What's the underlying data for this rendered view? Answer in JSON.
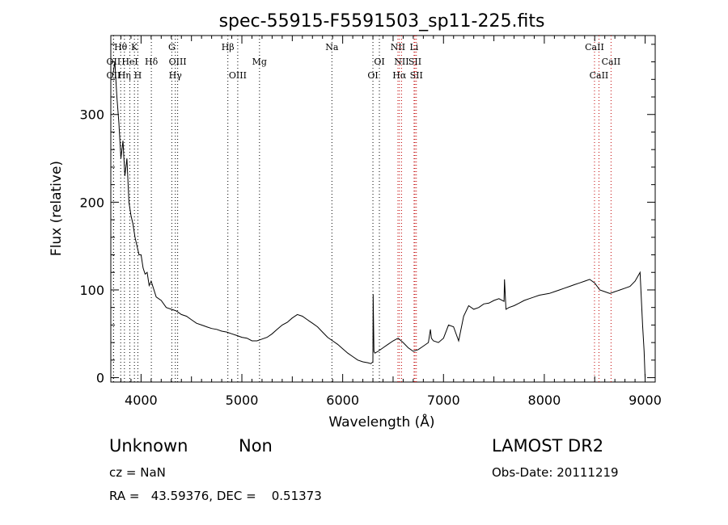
{
  "chart_data": {
    "type": "line",
    "title": "spec-55915-F5591503_sp11-225.fits",
    "xlabel": "Wavelength (Å)",
    "ylabel": "Flux (relative)",
    "xlim": [
      3700,
      9100
    ],
    "ylim": [
      -5,
      390
    ],
    "x_ticks": [
      4000,
      5000,
      6000,
      7000,
      8000,
      9000
    ],
    "y_ticks": [
      0,
      100,
      200,
      300
    ],
    "grid": false,
    "series": [
      {
        "x": [
          3720,
          3740,
          3760,
          3780,
          3800,
          3820,
          3840,
          3860,
          3880,
          3900,
          3920,
          3940,
          3960,
          3980,
          4000,
          4020,
          4040,
          4060,
          4080,
          4100,
          4150,
          4200,
          4250,
          4300,
          4350,
          4400,
          4450,
          4500,
          4550,
          4600,
          4650,
          4700,
          4750,
          4800,
          4850,
          4900,
          4950,
          5000,
          5050,
          5100,
          5150,
          5200,
          5250,
          5300,
          5350,
          5400,
          5450,
          5500,
          5550,
          5600,
          5650,
          5700,
          5750,
          5800,
          5850,
          5900,
          5950,
          6000,
          6050,
          6100,
          6150,
          6200,
          6250,
          6280,
          6300,
          6302,
          6310,
          6320,
          6350,
          6400,
          6450,
          6500,
          6550,
          6600,
          6650,
          6700,
          6750,
          6800,
          6850,
          6870,
          6880,
          6900,
          6950,
          7000,
          7050,
          7100,
          7150,
          7200,
          7250,
          7300,
          7350,
          7400,
          7450,
          7500,
          7550,
          7600,
          7605,
          7620,
          7650,
          7700,
          7750,
          7800,
          7850,
          7900,
          7950,
          8000,
          8050,
          8100,
          8150,
          8200,
          8250,
          8300,
          8350,
          8400,
          8450,
          8500,
          8550,
          8600,
          8650,
          8700,
          8750,
          8800,
          8850,
          8900,
          8950,
          8975,
          8990,
          9000
        ],
        "y": [
          345,
          360,
          320,
          290,
          250,
          270,
          230,
          250,
          200,
          185,
          175,
          160,
          150,
          140,
          140,
          125,
          118,
          120,
          105,
          110,
          92,
          88,
          80,
          78,
          76,
          72,
          70,
          66,
          62,
          60,
          58,
          56,
          55,
          53,
          52,
          50,
          48,
          46,
          45,
          42,
          42,
          44,
          46,
          50,
          55,
          60,
          63,
          68,
          72,
          70,
          66,
          62,
          58,
          52,
          46,
          42,
          38,
          33,
          28,
          24,
          20,
          18,
          17,
          16,
          18,
          95,
          30,
          28,
          30,
          34,
          38,
          42,
          45,
          40,
          34,
          30,
          32,
          36,
          40,
          55,
          45,
          42,
          40,
          45,
          60,
          58,
          42,
          70,
          82,
          78,
          80,
          84,
          85,
          88,
          90,
          87,
          112,
          78,
          80,
          82,
          85,
          88,
          90,
          92,
          94,
          95,
          96,
          98,
          100,
          102,
          104,
          106,
          108,
          110,
          112,
          108,
          100,
          98,
          96,
          98,
          100,
          102,
          104,
          110,
          120,
          60,
          30,
          0
        ]
      }
    ],
    "lines": [
      {
        "label": "Hθ",
        "x": 3798,
        "row": 1,
        "color": "#000"
      },
      {
        "label": "K",
        "x": 3934,
        "row": 1,
        "color": "#000"
      },
      {
        "label": "G",
        "x": 4305,
        "row": 1,
        "color": "#000"
      },
      {
        "label": "Hβ",
        "x": 4861,
        "row": 1,
        "color": "#000"
      },
      {
        "label": "Na",
        "x": 5893,
        "row": 1,
        "color": "#000"
      },
      {
        "label": "NII",
        "x": 6548,
        "row": 1,
        "color": "#c00000"
      },
      {
        "label": "Li",
        "x": 6708,
        "row": 1,
        "color": "#c00000"
      },
      {
        "label": "CaII",
        "x": 8498,
        "row": 1,
        "color": "#c00000"
      },
      {
        "label": "OII",
        "x": 3727,
        "row": 2,
        "color": "#000"
      },
      {
        "label": "HeI",
        "x": 3889,
        "row": 2,
        "color": "#000"
      },
      {
        "label": "Hδ",
        "x": 4102,
        "row": 2,
        "color": "#000"
      },
      {
        "label": "OIII",
        "x": 4363,
        "row": 2,
        "color": "#000"
      },
      {
        "label": "Mg",
        "x": 5175,
        "row": 2,
        "color": "#000"
      },
      {
        "label": "OI",
        "x": 6364,
        "row": 2,
        "color": "#000"
      },
      {
        "label": "NII",
        "x": 6584,
        "row": 2,
        "color": "#c00000"
      },
      {
        "label": "SII",
        "x": 6717,
        "row": 2,
        "color": "#c00000"
      },
      {
        "label": "CaII",
        "x": 8662,
        "row": 2,
        "color": "#c00000"
      },
      {
        "label": "OII",
        "x": 3727,
        "row": 3,
        "color": "#000"
      },
      {
        "label": "Hη",
        "x": 3835,
        "row": 3,
        "color": "#000"
      },
      {
        "label": "H",
        "x": 3968,
        "row": 3,
        "color": "#000"
      },
      {
        "label": "Hγ",
        "x": 4340,
        "row": 3,
        "color": "#000"
      },
      {
        "label": "OIII",
        "x": 4959,
        "row": 3,
        "color": "#000"
      },
      {
        "label": "OI",
        "x": 6300,
        "row": 3,
        "color": "#000"
      },
      {
        "label": "Hα",
        "x": 6563,
        "row": 3,
        "color": "#c00000"
      },
      {
        "label": "SII",
        "x": 6731,
        "row": 3,
        "color": "#c00000"
      },
      {
        "label": "CaII",
        "x": 8542,
        "row": 3,
        "color": "#c00000"
      }
    ]
  },
  "info": {
    "class": "Unknown",
    "subclass": "Non",
    "survey": "LAMOST DR2",
    "cz": "cz = NaN",
    "obs_date": "Obs-Date: 20111219",
    "radec": "RA =   43.59376, DEC =    0.51373"
  }
}
